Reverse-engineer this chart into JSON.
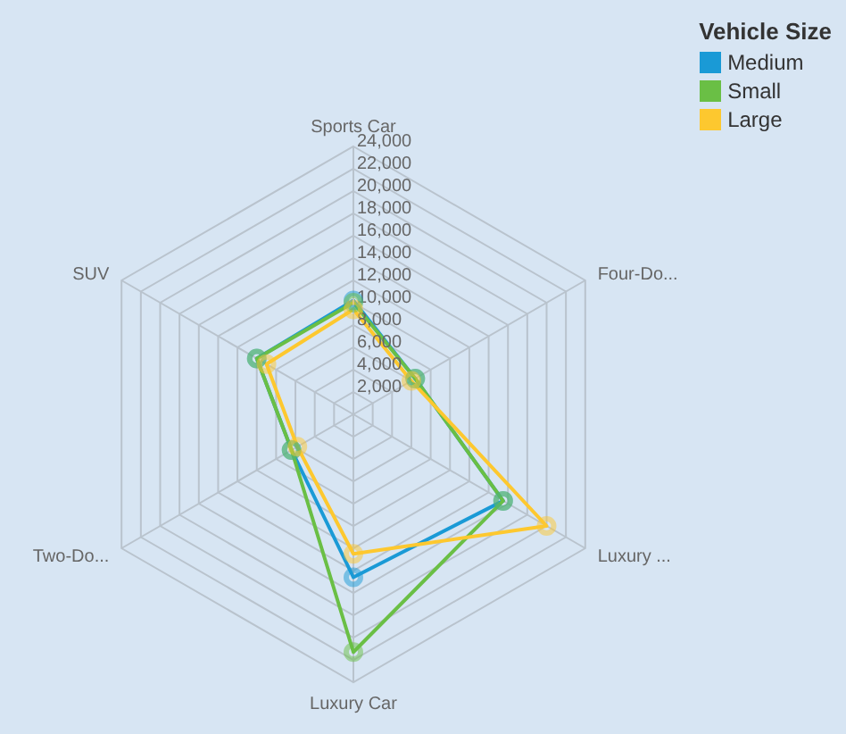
{
  "chart_data": {
    "type": "radar",
    "legend_title": "Vehicle Size",
    "categories": [
      "Sports Car",
      "Four-Do...",
      "Luxury ...",
      "Luxury Car",
      "Two-Do...",
      "SUV"
    ],
    "series": [
      {
        "name": "Medium",
        "color": "#1a9ad6",
        "values": [
          10200,
          6400,
          15500,
          14600,
          6400,
          10000
        ]
      },
      {
        "name": "Small",
        "color": "#6abf45",
        "values": [
          10000,
          6400,
          15500,
          21300,
          6400,
          10000
        ]
      },
      {
        "name": "Large",
        "color": "#fdc82f",
        "values": [
          9400,
          6000,
          20000,
          12500,
          5800,
          9000
        ]
      }
    ],
    "ylim": [
      0,
      24000
    ],
    "yticks": [
      {
        "value": 2000,
        "label": "2,000"
      },
      {
        "value": 4000,
        "label": "4,000"
      },
      {
        "value": 6000,
        "label": "6,000"
      },
      {
        "value": 8000,
        "label": "8,000"
      },
      {
        "value": 10000,
        "label": "10,000"
      },
      {
        "value": 12000,
        "label": "12,000"
      },
      {
        "value": 14000,
        "label": "14,000"
      },
      {
        "value": 16000,
        "label": "16,000"
      },
      {
        "value": 18000,
        "label": "18,000"
      },
      {
        "value": 20000,
        "label": "20,000"
      },
      {
        "value": 22000,
        "label": "22,000"
      },
      {
        "value": 24000,
        "label": "24,000"
      }
    ],
    "grid": true,
    "legend": "top right",
    "marker": "circle"
  }
}
